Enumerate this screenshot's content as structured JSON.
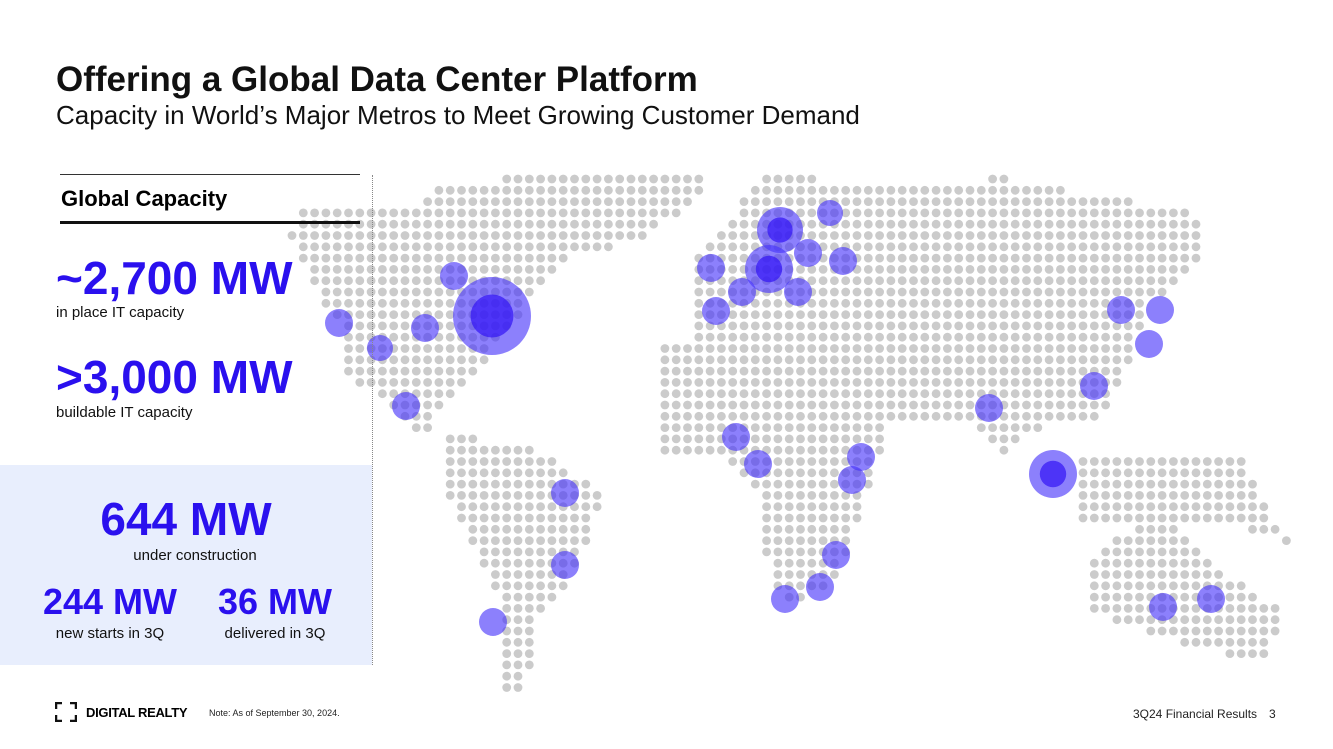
{
  "header": {
    "title": "Offering a Global Data Center Platform",
    "subtitle": "Capacity in World’s Major Metros to Meet Growing Customer Demand"
  },
  "capacity": {
    "heading": "Global Capacity",
    "metrics": [
      {
        "value": "~2,700 MW",
        "label": "in place IT capacity"
      },
      {
        "value": ">3,000 MW",
        "label": "buildable IT capacity"
      }
    ],
    "construction": {
      "value": "644 MW",
      "label": "under construction"
    },
    "starts": {
      "value": "244 MW",
      "label": "new starts in 3Q"
    },
    "delivered": {
      "value": "36 MW",
      "label": "delivered in 3Q"
    }
  },
  "footer": {
    "brand": "DIGITAL REALTY",
    "note": "Note: As of September 30, 2024.",
    "page_label": "3Q24 Financial Results",
    "page_number": "3"
  }
}
